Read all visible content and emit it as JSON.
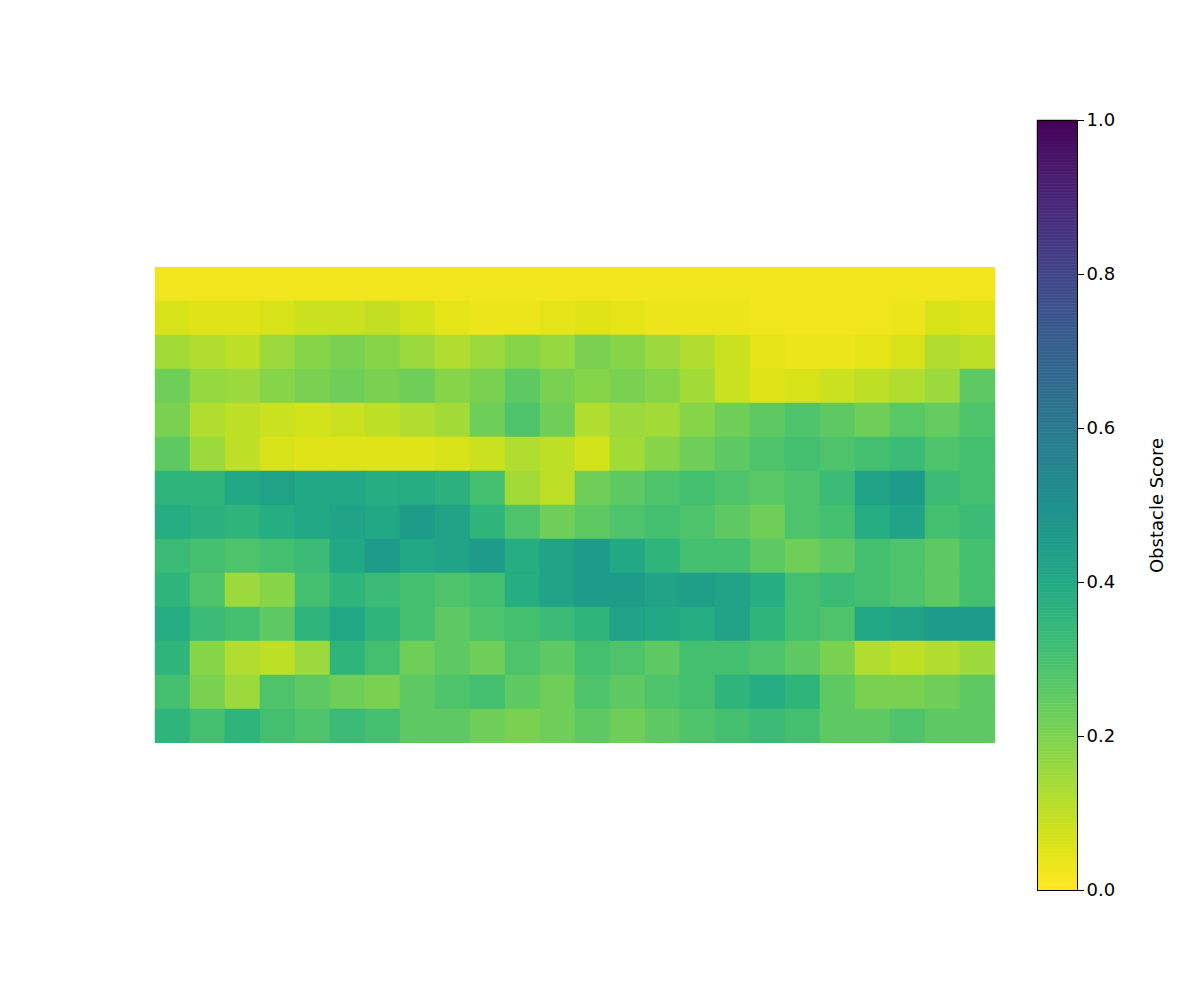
{
  "chart_data": {
    "type": "heatmap",
    "color": "viridis_r",
    "tick_labels": false,
    "cells": [
      [
        0.02,
        0.02,
        0.02,
        0.02,
        0.02,
        0.02,
        0.02,
        0.02,
        0.02,
        0.02,
        0.02,
        0.02,
        0.02,
        0.02,
        0.02,
        0.02,
        0.02,
        0.02,
        0.02,
        0.02,
        0.02,
        0.02,
        0.02,
        0.02
      ],
      [
        0.06,
        0.05,
        0.05,
        0.06,
        0.08,
        0.08,
        0.09,
        0.07,
        0.04,
        0.03,
        0.03,
        0.04,
        0.05,
        0.04,
        0.03,
        0.03,
        0.03,
        0.02,
        0.02,
        0.02,
        0.02,
        0.03,
        0.06,
        0.05
      ],
      [
        0.14,
        0.12,
        0.1,
        0.15,
        0.18,
        0.2,
        0.18,
        0.15,
        0.12,
        0.15,
        0.18,
        0.16,
        0.2,
        0.18,
        0.15,
        0.12,
        0.08,
        0.04,
        0.03,
        0.03,
        0.04,
        0.06,
        0.12,
        0.1
      ],
      [
        0.22,
        0.16,
        0.15,
        0.18,
        0.2,
        0.22,
        0.2,
        0.22,
        0.18,
        0.2,
        0.25,
        0.2,
        0.18,
        0.2,
        0.18,
        0.14,
        0.08,
        0.05,
        0.06,
        0.08,
        0.1,
        0.12,
        0.15,
        0.25
      ],
      [
        0.2,
        0.12,
        0.1,
        0.08,
        0.07,
        0.08,
        0.1,
        0.12,
        0.14,
        0.22,
        0.28,
        0.22,
        0.12,
        0.15,
        0.14,
        0.18,
        0.22,
        0.25,
        0.28,
        0.25,
        0.22,
        0.26,
        0.24,
        0.28
      ],
      [
        0.25,
        0.15,
        0.1,
        0.06,
        0.05,
        0.05,
        0.05,
        0.05,
        0.06,
        0.08,
        0.12,
        0.1,
        0.07,
        0.14,
        0.18,
        0.22,
        0.25,
        0.28,
        0.3,
        0.28,
        0.3,
        0.32,
        0.28,
        0.3
      ],
      [
        0.35,
        0.35,
        0.4,
        0.42,
        0.4,
        0.4,
        0.38,
        0.38,
        0.36,
        0.3,
        0.14,
        0.1,
        0.22,
        0.25,
        0.28,
        0.3,
        0.28,
        0.26,
        0.28,
        0.32,
        0.42,
        0.45,
        0.32,
        0.3
      ],
      [
        0.38,
        0.36,
        0.35,
        0.38,
        0.4,
        0.42,
        0.4,
        0.45,
        0.42,
        0.35,
        0.28,
        0.22,
        0.25,
        0.28,
        0.3,
        0.28,
        0.25,
        0.22,
        0.28,
        0.3,
        0.38,
        0.42,
        0.3,
        0.32
      ],
      [
        0.32,
        0.3,
        0.28,
        0.3,
        0.32,
        0.4,
        0.45,
        0.4,
        0.42,
        0.45,
        0.38,
        0.42,
        0.45,
        0.4,
        0.35,
        0.3,
        0.3,
        0.25,
        0.22,
        0.25,
        0.3,
        0.28,
        0.25,
        0.3
      ],
      [
        0.35,
        0.28,
        0.15,
        0.18,
        0.3,
        0.35,
        0.32,
        0.3,
        0.28,
        0.3,
        0.38,
        0.42,
        0.45,
        0.45,
        0.42,
        0.44,
        0.42,
        0.38,
        0.3,
        0.32,
        0.3,
        0.28,
        0.25,
        0.3
      ],
      [
        0.38,
        0.32,
        0.3,
        0.25,
        0.35,
        0.4,
        0.35,
        0.3,
        0.25,
        0.28,
        0.3,
        0.32,
        0.35,
        0.42,
        0.4,
        0.38,
        0.42,
        0.35,
        0.3,
        0.28,
        0.4,
        0.42,
        0.45,
        0.45
      ],
      [
        0.35,
        0.18,
        0.12,
        0.1,
        0.15,
        0.35,
        0.3,
        0.22,
        0.25,
        0.22,
        0.28,
        0.25,
        0.3,
        0.28,
        0.25,
        0.3,
        0.3,
        0.28,
        0.25,
        0.2,
        0.12,
        0.1,
        0.12,
        0.15
      ],
      [
        0.3,
        0.2,
        0.15,
        0.28,
        0.25,
        0.22,
        0.2,
        0.25,
        0.28,
        0.3,
        0.25,
        0.22,
        0.28,
        0.25,
        0.28,
        0.3,
        0.35,
        0.38,
        0.35,
        0.25,
        0.2,
        0.2,
        0.22,
        0.25
      ],
      [
        0.35,
        0.3,
        0.35,
        0.3,
        0.28,
        0.32,
        0.3,
        0.25,
        0.25,
        0.22,
        0.2,
        0.22,
        0.25,
        0.22,
        0.25,
        0.28,
        0.3,
        0.32,
        0.3,
        0.25,
        0.25,
        0.28,
        0.25,
        0.25
      ]
    ],
    "colorbar": {
      "label": "Obstacle Score",
      "range": [
        0,
        1
      ],
      "ticks": [
        {
          "value": 0,
          "label": "0.0"
        },
        {
          "value": 0.2,
          "label": "0.2"
        },
        {
          "value": 0.4,
          "label": "0.4"
        },
        {
          "value": 0.6,
          "label": "0.6"
        },
        {
          "value": 0.8,
          "label": "0.8"
        },
        {
          "value": 1,
          "label": "1.0"
        }
      ]
    }
  }
}
